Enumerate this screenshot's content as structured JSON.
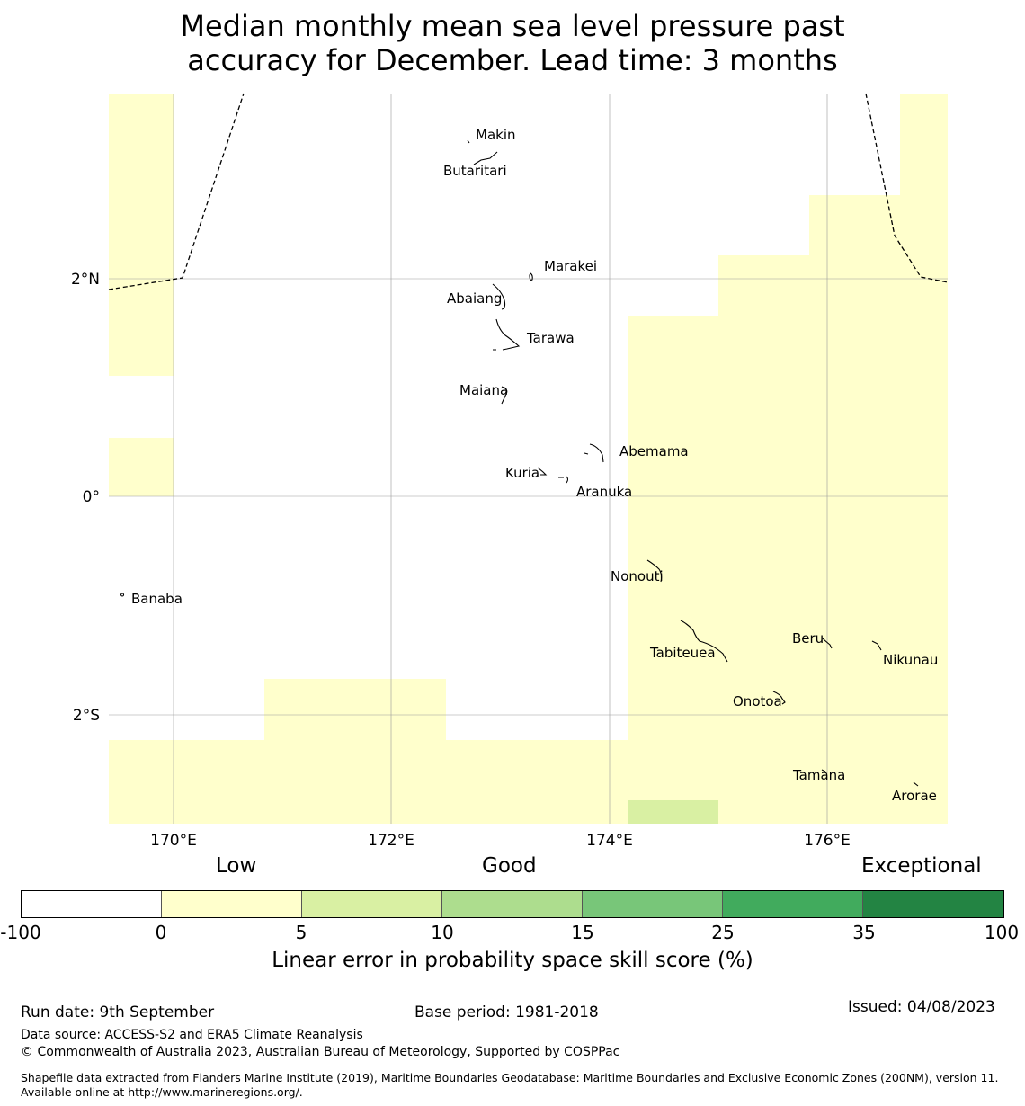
{
  "title_line1": "Median monthly mean sea level pressure past",
  "title_line2": "accuracy for December. Lead time: 3 months",
  "lon_ticks": [
    "170°E",
    "172°E",
    "174°E",
    "176°E"
  ],
  "lat_ticks": [
    "2°N",
    "0°",
    "2°S"
  ],
  "islands": [
    {
      "name": "Makin"
    },
    {
      "name": "Butaritari"
    },
    {
      "name": "Marakei"
    },
    {
      "name": "Abaiang"
    },
    {
      "name": "Tarawa"
    },
    {
      "name": "Maiana"
    },
    {
      "name": "Abemama"
    },
    {
      "name": "Kuria"
    },
    {
      "name": "Aranuka"
    },
    {
      "name": "Banaba"
    },
    {
      "name": "Nonouti"
    },
    {
      "name": "Beru"
    },
    {
      "name": "Tabiteuea"
    },
    {
      "name": "Nikunau"
    },
    {
      "name": "Onotoa"
    },
    {
      "name": "Tamana"
    },
    {
      "name": "Arorae"
    }
  ],
  "legend": {
    "categories": [
      "Low",
      "Good",
      "Exceptional"
    ],
    "ticks": [
      "-100",
      "0",
      "5",
      "10",
      "15",
      "25",
      "35",
      "100"
    ],
    "colors": [
      "#ffffff",
      "#ffffcc",
      "#d9f0a3",
      "#addd8e",
      "#78c679",
      "#41ab5d",
      "#238443"
    ],
    "label": "Linear error in probability space skill score (%)"
  },
  "colors": {
    "low": "#ffffcc",
    "good": "#d9f0a3"
  },
  "footer": {
    "run_date": "Run date: 9th September",
    "base_period": "Base period: 1981-2018",
    "issued": "Issued: 04/08/2023",
    "data_source": "Data source: ACCESS-S2 and ERA5 Climate Reanalysis",
    "copyright": "© Commonwealth of Australia 2023, Australian Bureau of Meteorology, Supported by COSPPac",
    "shapefile": "Shapefile data extracted from Flanders Marine Institute (2019), Maritime Boundaries Geodatabase: Maritime Boundaries and Exclusive Economic Zones (200NM), version 11. Available online at http://www.marineregions.org/."
  }
}
